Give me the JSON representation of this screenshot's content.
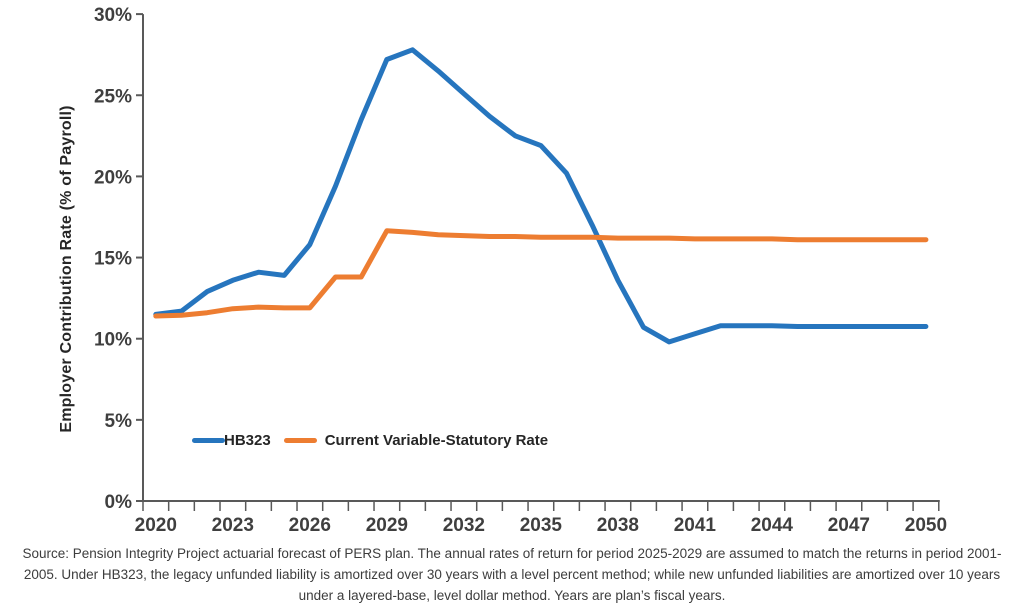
{
  "chart_data": {
    "type": "line",
    "title": "",
    "xlabel": "",
    "ylabel": "Employer Contribution Rate (% of Payroll)",
    "ylim": [
      0,
      30
    ],
    "ytick_step": 5,
    "ytick_labels": [
      "0%",
      "5%",
      "10%",
      "15%",
      "20%",
      "25%",
      "30%"
    ],
    "xtick_labels": [
      "2020",
      "2023",
      "2026",
      "2029",
      "2032",
      "2035",
      "2038",
      "2041",
      "2044",
      "2047",
      "2050"
    ],
    "xtick_label_interval": 3,
    "grid": false,
    "legend_position": "inside-bottom-left",
    "axis_color": "#595959",
    "label_color": "#3f3f3f",
    "x": [
      2020,
      2021,
      2022,
      2023,
      2024,
      2025,
      2026,
      2027,
      2028,
      2029,
      2030,
      2031,
      2032,
      2033,
      2034,
      2035,
      2036,
      2037,
      2038,
      2039,
      2040,
      2041,
      2042,
      2043,
      2044,
      2045,
      2046,
      2047,
      2048,
      2049,
      2050
    ],
    "series": [
      {
        "name": "HB323",
        "color": "#2675BE",
        "values": [
          11.5,
          11.7,
          12.9,
          13.6,
          14.1,
          13.9,
          15.8,
          19.4,
          23.5,
          27.2,
          27.8,
          26.5,
          25.1,
          23.7,
          22.5,
          21.9,
          20.2,
          17.0,
          13.6,
          10.7,
          9.8,
          10.3,
          10.8,
          10.8,
          10.8,
          10.75,
          10.75,
          10.75,
          10.75,
          10.75,
          10.75
        ]
      },
      {
        "name": "Current Variable-Statutory Rate",
        "color": "#ED7D31",
        "values": [
          11.4,
          11.45,
          11.6,
          11.85,
          11.95,
          11.9,
          11.9,
          13.8,
          13.8,
          16.65,
          16.55,
          16.4,
          16.35,
          16.3,
          16.3,
          16.25,
          16.25,
          16.25,
          16.2,
          16.2,
          16.2,
          16.15,
          16.15,
          16.15,
          16.15,
          16.1,
          16.1,
          16.1,
          16.1,
          16.1,
          16.1
        ]
      }
    ]
  },
  "source_note": {
    "lines": [
      "Source: Pension Integrity Project actuarial forecast of PERS plan. The annual rates of return for period 2025-2029 are assumed to match the returns in period 2001-",
      "2005. Under HB323, the legacy unfunded liability is amortized over 30 years with a level percent method; while new unfunded liabilities are amortized over 10 years",
      "under a layered-base, level dollar method. Years are plan’s fiscal years."
    ]
  }
}
